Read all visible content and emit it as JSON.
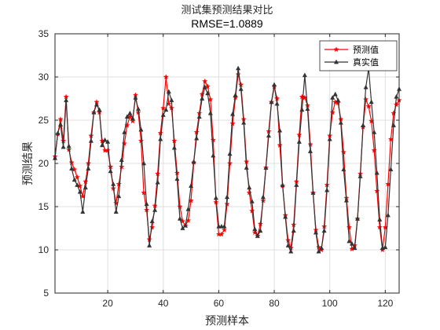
{
  "chart_data": {
    "type": "line",
    "title": "测试集预测结果对比",
    "subtitle": "RMSE=1.0889",
    "xlabel": "预测样本",
    "ylabel": "预测结果",
    "xlim": [
      1,
      125
    ],
    "ylim": [
      5,
      35
    ],
    "xticks": [
      20,
      40,
      60,
      80,
      100,
      120
    ],
    "yticks": [
      5,
      10,
      15,
      20,
      25,
      30,
      35
    ],
    "grid": true,
    "legend_position": "top-right",
    "series": [
      {
        "name": "预测值",
        "color": "#ff0000",
        "marker": "star",
        "values": [
          20.8,
          23.4,
          25.1,
          22.6,
          27.7,
          21.6,
          20.1,
          19.3,
          18.4,
          17.4,
          16.2,
          17.9,
          20.0,
          23.2,
          25.9,
          27.1,
          25.9,
          22.6,
          21.5,
          21.5,
          19.6,
          17.1,
          15.4,
          17.6,
          19.6,
          22.3,
          24.4,
          25.4,
          24.9,
          27.9,
          25.9,
          22.6,
          16.6,
          14.6,
          11.2,
          12.6,
          15.1,
          18.8,
          23.5,
          26.4,
          30.0,
          26.9,
          26.4,
          22.6,
          18.9,
          15.0,
          13.3,
          12.8,
          13.4,
          15.7,
          20.1,
          23.6,
          25.8,
          28.0,
          29.5,
          28.9,
          27.4,
          22.7,
          15.5,
          11.8,
          11.8,
          12.3,
          15.3,
          20.0,
          24.6,
          27.6,
          30.3,
          29.1,
          25.1,
          20.2,
          16.6,
          14.5,
          12.0,
          11.6,
          13.0,
          15.7,
          19.5,
          23.7,
          27.1,
          28.9,
          27.5,
          22.1,
          17.4,
          14.0,
          11.1,
          10.2,
          12.9,
          17.9,
          23.3,
          27.7,
          27.6,
          26.7,
          22.2,
          16.6,
          12.3,
          10.3,
          10.0,
          12.7,
          17.5,
          23.2,
          25.9,
          27.1,
          27.0,
          25.1,
          21.3,
          16.0,
          12.6,
          10.1,
          10.5,
          13.6,
          18.8,
          24.2,
          27.4,
          26.6,
          24.9,
          21.5,
          16.8,
          12.6,
          10.0,
          12.6,
          17.6,
          22.8,
          25.8,
          26.8,
          27.3
        ]
      },
      {
        "name": "真实值",
        "color": "#333333",
        "marker": "triangle",
        "values": [
          20.6,
          23.5,
          24.5,
          21.9,
          27.3,
          22.0,
          19.4,
          18.1,
          17.5,
          16.7,
          14.4,
          17.2,
          19.4,
          22.6,
          25.9,
          26.8,
          26.2,
          22.1,
          22.7,
          22.5,
          19.1,
          17.6,
          14.4,
          16.2,
          20.4,
          23.6,
          25.4,
          25.8,
          25.2,
          27.6,
          26.3,
          23.9,
          20.0,
          15.3,
          10.5,
          13.3,
          14.6,
          17.8,
          22.8,
          25.6,
          26.2,
          28.3,
          27.3,
          21.8,
          18.2,
          13.6,
          12.5,
          12.8,
          14.7,
          17.4,
          20.2,
          22.9,
          25.4,
          27.5,
          28.8,
          28.1,
          25.8,
          20.9,
          16.0,
          12.7,
          12.7,
          12.7,
          16.1,
          21.1,
          25.7,
          27.9,
          31.0,
          28.6,
          24.7,
          19.5,
          17.2,
          15.6,
          12.4,
          11.6,
          12.2,
          16.1,
          19.5,
          23.2,
          27.1,
          29.1,
          26.9,
          23.8,
          17.5,
          13.8,
          10.5,
          9.8,
          12.2,
          17.5,
          22.5,
          26.2,
          30.2,
          26.3,
          21.4,
          16.6,
          12.0,
          9.8,
          10.2,
          12.2,
          16.9,
          22.8,
          27.6,
          28.0,
          27.3,
          24.7,
          19.3,
          15.7,
          11.0,
          10.7,
          10.2,
          13.6,
          18.5,
          24.4,
          28.8,
          31.0,
          27.1,
          23.6,
          18.9,
          13.5,
          10.2,
          10.3,
          14.0,
          19.3,
          24.4,
          27.7,
          28.6
        ]
      }
    ]
  }
}
